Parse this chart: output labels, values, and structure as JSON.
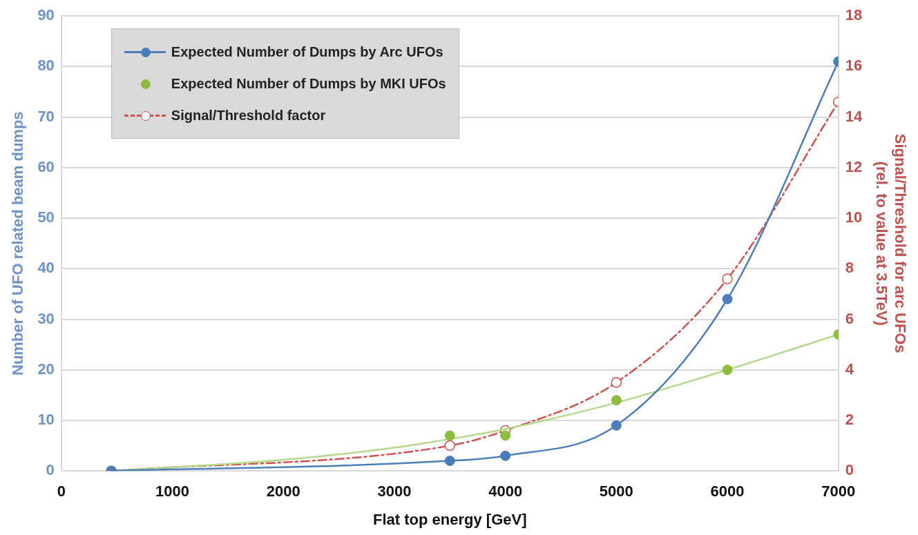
{
  "chart_data": {
    "type": "line",
    "xlabel": "Flat top energy [GeV]",
    "ylabel": "Number of UFO related beam dumps",
    "y2label": "Signal/Threshold for arc UFOs\n(rel. to value at 3.5TeV)",
    "x": [
      450,
      3500,
      4000,
      5000,
      6000,
      7000
    ],
    "series": [
      {
        "name": "Expected Number of Dumps by Arc UFOs",
        "type": "line",
        "color": "#4a7ebb",
        "marker": "circle",
        "values": [
          0,
          2,
          3,
          9,
          34,
          81
        ]
      },
      {
        "name": "Expected Number of Dumps by MKI UFOs",
        "type": "scatter",
        "color": "#8cbd3f",
        "marker": "circle",
        "values": [
          0,
          7,
          7,
          14,
          20,
          27
        ]
      },
      {
        "type": "line",
        "color": "#b5d98a",
        "marker": "none",
        "x": [
          450,
          2000,
          3000,
          3500,
          4000,
          5000,
          6000,
          7000
        ],
        "values": [
          0,
          2.2,
          4.6,
          6.3,
          8.3,
          13.5,
          20,
          27
        ]
      },
      {
        "name": "Signal/Threshold factor",
        "type": "line",
        "axis": "y2",
        "color": "#d0504d",
        "marker": "circle",
        "line_style": "dashed",
        "values": [
          0,
          1,
          1.6,
          3.5,
          7.6,
          14.6
        ]
      }
    ],
    "xlim": [
      0,
      7000
    ],
    "xticks": [
      0,
      1000,
      2000,
      3000,
      4000,
      5000,
      6000,
      7000
    ],
    "ylim": [
      0,
      90
    ],
    "yticks": [
      0,
      10,
      20,
      30,
      40,
      50,
      60,
      70,
      80,
      90
    ],
    "y2lim": [
      0,
      18
    ],
    "y2ticks": [
      0,
      2,
      4,
      6,
      8,
      10,
      12,
      14,
      16,
      18
    ],
    "grid": "y",
    "legend": "top left"
  }
}
